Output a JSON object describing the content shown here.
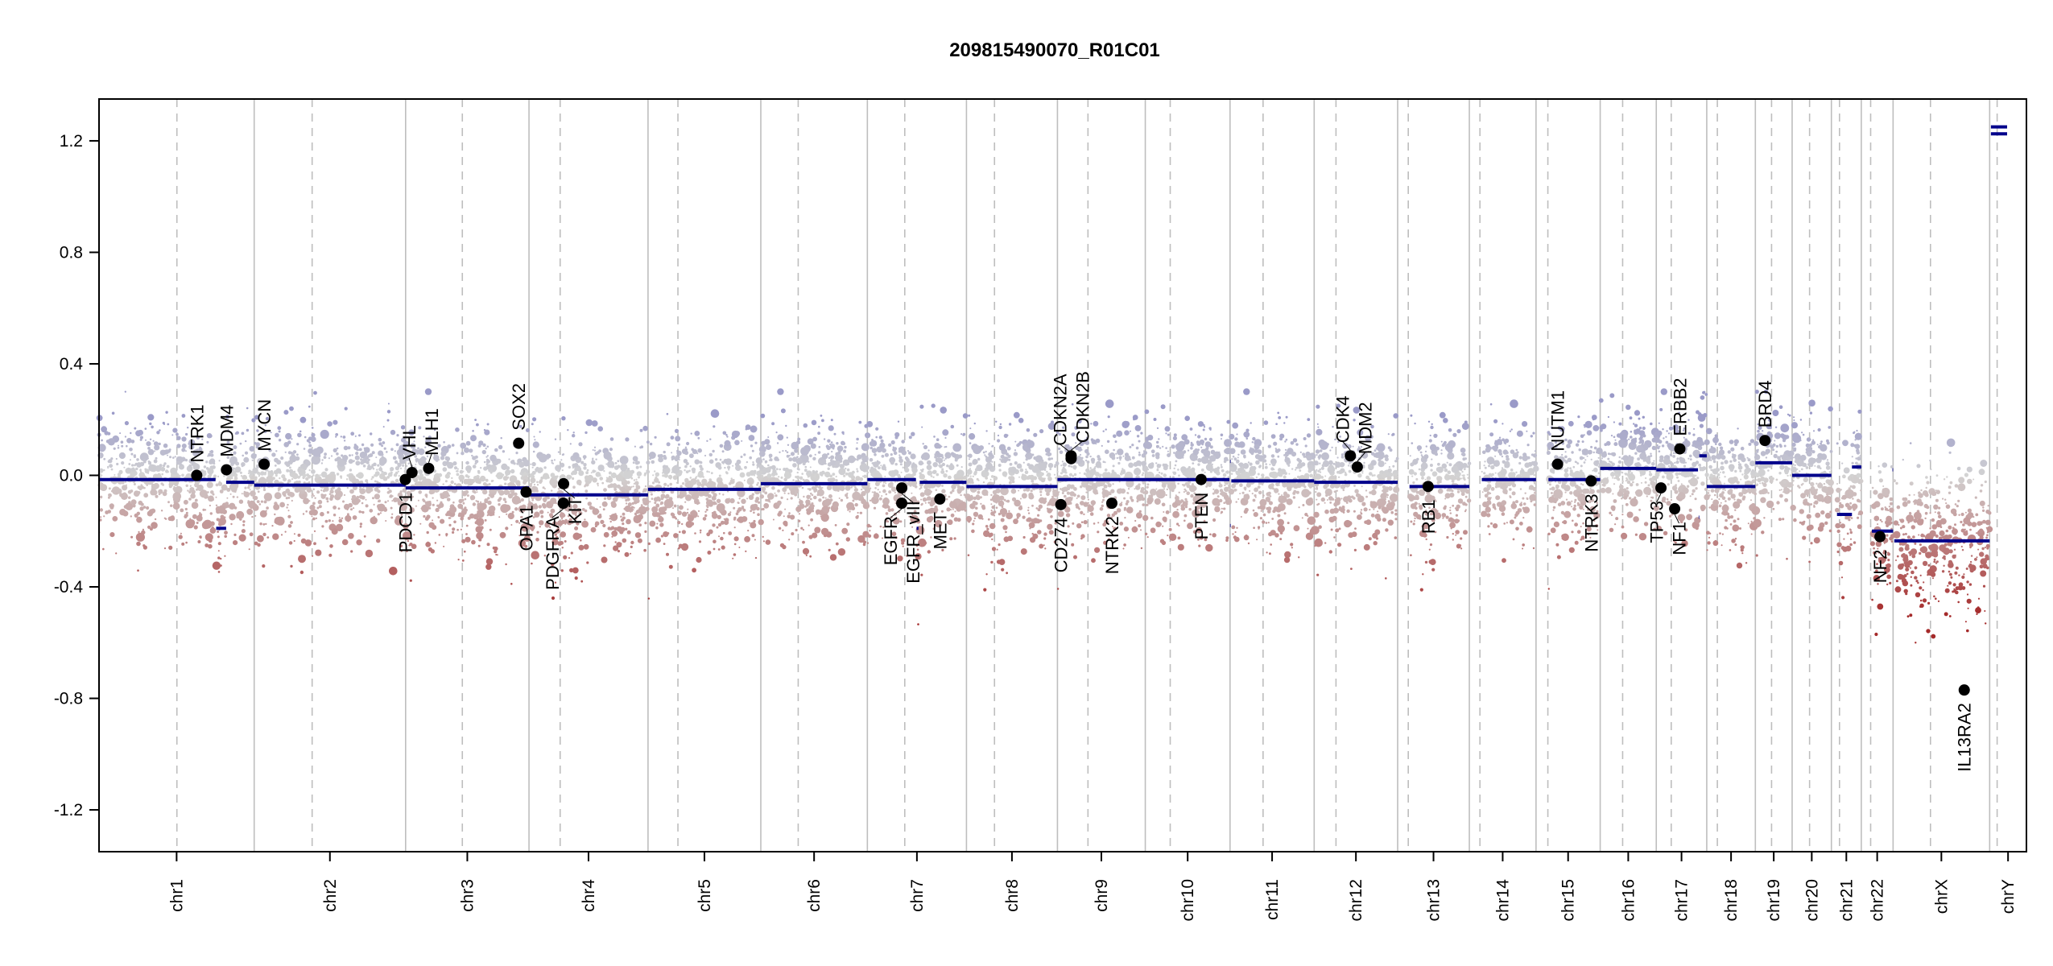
{
  "chart_data": {
    "type": "scatter",
    "title": "209815490070_R01C01",
    "xlabel": "",
    "ylabel": "",
    "ylim": [
      -1.35,
      1.35
    ],
    "yticks": [
      -1.2,
      -0.8,
      -0.4,
      0.0,
      0.4,
      0.8,
      1.2
    ],
    "ytick_labels": [
      "-1.2",
      "-0.8",
      "-0.4",
      "0.0",
      "0.4",
      "0.8",
      "1.2"
    ],
    "grid": "vertical lines at chromosome boundaries (solid) and centromeres (dashed)",
    "chromosomes": [
      {
        "name": "chr1",
        "length_mb": 249,
        "centromere_mb": 125
      },
      {
        "name": "chr2",
        "length_mb": 243,
        "centromere_mb": 93
      },
      {
        "name": "chr3",
        "length_mb": 198,
        "centromere_mb": 91
      },
      {
        "name": "chr4",
        "length_mb": 191,
        "centromere_mb": 50
      },
      {
        "name": "chr5",
        "length_mb": 181,
        "centromere_mb": 48
      },
      {
        "name": "chr6",
        "length_mb": 171,
        "centromere_mb": 60
      },
      {
        "name": "chr7",
        "length_mb": 159,
        "centromere_mb": 60
      },
      {
        "name": "chr8",
        "length_mb": 146,
        "centromere_mb": 45
      },
      {
        "name": "chr9",
        "length_mb": 141,
        "centromere_mb": 49
      },
      {
        "name": "chr10",
        "length_mb": 136,
        "centromere_mb": 40
      },
      {
        "name": "chr11",
        "length_mb": 135,
        "centromere_mb": 53
      },
      {
        "name": "chr12",
        "length_mb": 134,
        "centromere_mb": 35
      },
      {
        "name": "chr13",
        "length_mb": 115,
        "centromere_mb": 17
      },
      {
        "name": "chr14",
        "length_mb": 107,
        "centromere_mb": 17
      },
      {
        "name": "chr15",
        "length_mb": 103,
        "centromere_mb": 19
      },
      {
        "name": "chr16",
        "length_mb": 90,
        "centromere_mb": 36
      },
      {
        "name": "chr17",
        "length_mb": 81,
        "centromere_mb": 24
      },
      {
        "name": "chr18",
        "length_mb": 78,
        "centromere_mb": 17
      },
      {
        "name": "chr19",
        "length_mb": 59,
        "centromere_mb": 26
      },
      {
        "name": "chr20",
        "length_mb": 63,
        "centromere_mb": 28
      },
      {
        "name": "chr21",
        "length_mb": 48,
        "centromere_mb": 13
      },
      {
        "name": "chr22",
        "length_mb": 51,
        "centromere_mb": 15
      },
      {
        "name": "chrX",
        "length_mb": 155,
        "centromere_mb": 60
      },
      {
        "name": "chrY",
        "length_mb": 59,
        "centromere_mb": 12
      }
    ],
    "segments": [
      {
        "chr": "chr1",
        "start": 0,
        "end": 187,
        "value": -0.015
      },
      {
        "chr": "chr1",
        "start": 188,
        "end": 204,
        "value": -0.19
      },
      {
        "chr": "chr1",
        "start": 204,
        "end": 249,
        "value": -0.025
      },
      {
        "chr": "chr2",
        "start": 0,
        "end": 243,
        "value": -0.035
      },
      {
        "chr": "chr3",
        "start": 0,
        "end": 198,
        "value": -0.045
      },
      {
        "chr": "chr4",
        "start": 0,
        "end": 191,
        "value": -0.07
      },
      {
        "chr": "chr5",
        "start": 0,
        "end": 181,
        "value": -0.05
      },
      {
        "chr": "chr6",
        "start": 0,
        "end": 171,
        "value": -0.03
      },
      {
        "chr": "chr7",
        "start": 0,
        "end": 78,
        "value": -0.015
      },
      {
        "chr": "chr7",
        "start": 79,
        "end": 82,
        "value": -0.19
      },
      {
        "chr": "chr7",
        "start": 84,
        "end": 159,
        "value": -0.025
      },
      {
        "chr": "chr8",
        "start": 0,
        "end": 146,
        "value": -0.04
      },
      {
        "chr": "chr9",
        "start": 0,
        "end": 141,
        "value": -0.015
      },
      {
        "chr": "chr10",
        "start": 0,
        "end": 135,
        "value": -0.015
      },
      {
        "chr": "chr11",
        "start": 0,
        "end": 1,
        "value": 0.05
      },
      {
        "chr": "chr11",
        "start": 0,
        "end": 1,
        "value": -0.18
      },
      {
        "chr": "chr11",
        "start": 2,
        "end": 135,
        "value": -0.02
      },
      {
        "chr": "chr12",
        "start": 0,
        "end": 134,
        "value": -0.025
      },
      {
        "chr": "chr13",
        "start": 19,
        "end": 115,
        "value": -0.04
      },
      {
        "chr": "chr14",
        "start": 20,
        "end": 107,
        "value": -0.015
      },
      {
        "chr": "chr15",
        "start": 20,
        "end": 103,
        "value": -0.015
      },
      {
        "chr": "chr16",
        "start": 0,
        "end": 90,
        "value": 0.025
      },
      {
        "chr": "chr17",
        "start": 0,
        "end": 67,
        "value": 0.02
      },
      {
        "chr": "chr17",
        "start": 68,
        "end": 69,
        "value": -0.15
      },
      {
        "chr": "chr17",
        "start": 69,
        "end": 81,
        "value": 0.07
      },
      {
        "chr": "chr18",
        "start": 0,
        "end": 78,
        "value": -0.04
      },
      {
        "chr": "chr19",
        "start": 0,
        "end": 59,
        "value": 0.045
      },
      {
        "chr": "chr20",
        "start": 0,
        "end": 63,
        "value": 0.0
      },
      {
        "chr": "chr21",
        "start": 9,
        "end": 33,
        "value": -0.14
      },
      {
        "chr": "chr21",
        "start": 33,
        "end": 48,
        "value": 0.03
      },
      {
        "chr": "chr22",
        "start": 17,
        "end": 51,
        "value": -0.2
      },
      {
        "chr": "chr22",
        "start": 50,
        "end": 51,
        "value": 0.02
      },
      {
        "chr": "chrX",
        "start": 2,
        "end": 155,
        "value": -0.235
      },
      {
        "chr": "chrY",
        "start": 2,
        "end": 28,
        "value": 1.25
      },
      {
        "chr": "chrY",
        "start": 2,
        "end": 28,
        "value": 1.225
      }
    ],
    "genes": [
      {
        "name": "NTRK1",
        "chr": "chr1",
        "pos_mb": 156.8,
        "value": 0.0,
        "label_side": "above"
      },
      {
        "name": "MDM4",
        "chr": "chr1",
        "pos_mb": 204.5,
        "value": 0.02,
        "label_side": "above"
      },
      {
        "name": "MYCN",
        "chr": "chr2",
        "pos_mb": 16.0,
        "value": 0.04,
        "label_side": "above"
      },
      {
        "name": "PDCD1",
        "chr": "chr2",
        "pos_mb": 242.5,
        "value": -0.015,
        "label_side": "below"
      },
      {
        "name": "VHL",
        "chr": "chr3",
        "pos_mb": 10.2,
        "value": 0.01,
        "label_side": "above"
      },
      {
        "name": "MLH1",
        "chr": "chr3",
        "pos_mb": 37.0,
        "value": 0.025,
        "label_side": "above"
      },
      {
        "name": "SOX2",
        "chr": "chr3",
        "pos_mb": 181.4,
        "value": 0.115,
        "label_side": "above"
      },
      {
        "name": "OPA1",
        "chr": "chr3",
        "pos_mb": 193.3,
        "value": -0.06,
        "label_side": "below"
      },
      {
        "name": "PDGFRA",
        "chr": "chr4",
        "pos_mb": 55.1,
        "value": -0.1,
        "label_side": "below"
      },
      {
        "name": "KIT",
        "chr": "chr4",
        "pos_mb": 55.5,
        "value": -0.03,
        "label_side": "below"
      },
      {
        "name": "EGFR",
        "chr": "chr7",
        "pos_mb": 55.1,
        "value": -0.1,
        "label_side": "below"
      },
      {
        "name": "EGFR_vIII",
        "chr": "chr7",
        "pos_mb": 55.2,
        "value": -0.045,
        "label_side": "below"
      },
      {
        "name": "MET",
        "chr": "chr7",
        "pos_mb": 116.3,
        "value": -0.085,
        "label_side": "below"
      },
      {
        "name": "CD274",
        "chr": "chr9",
        "pos_mb": 5.5,
        "value": -0.105,
        "label_side": "below"
      },
      {
        "name": "CDKN2A",
        "chr": "chr9",
        "pos_mb": 21.97,
        "value": 0.06,
        "label_side": "above"
      },
      {
        "name": "CDKN2B",
        "chr": "chr9",
        "pos_mb": 22.0,
        "value": 0.07,
        "label_side": "above"
      },
      {
        "name": "NTRK2",
        "chr": "chr9",
        "pos_mb": 87.3,
        "value": -0.1,
        "label_side": "below"
      },
      {
        "name": "PTEN",
        "chr": "chr10",
        "pos_mb": 89.6,
        "value": -0.015,
        "label_side": "below"
      },
      {
        "name": "CDK4",
        "chr": "chr12",
        "pos_mb": 58.1,
        "value": 0.07,
        "label_side": "above"
      },
      {
        "name": "MDM2",
        "chr": "chr12",
        "pos_mb": 69.2,
        "value": 0.03,
        "label_side": "above"
      },
      {
        "name": "RB1",
        "chr": "chr13",
        "pos_mb": 48.9,
        "value": -0.04,
        "label_side": "below"
      },
      {
        "name": "NUTM1",
        "chr": "chr15",
        "pos_mb": 34.6,
        "value": 0.04,
        "label_side": "above"
      },
      {
        "name": "NTRK3",
        "chr": "chr15",
        "pos_mb": 88.5,
        "value": -0.02,
        "label_side": "below"
      },
      {
        "name": "TP53",
        "chr": "chr17",
        "pos_mb": 7.5,
        "value": -0.045,
        "label_side": "below"
      },
      {
        "name": "NF1",
        "chr": "chr17",
        "pos_mb": 29.5,
        "value": -0.12,
        "label_side": "below"
      },
      {
        "name": "ERBB2",
        "chr": "chr17",
        "pos_mb": 37.8,
        "value": 0.095,
        "label_side": "above"
      },
      {
        "name": "BRD4",
        "chr": "chr19",
        "pos_mb": 15.4,
        "value": 0.125,
        "label_side": "above"
      },
      {
        "name": "NF2",
        "chr": "chr22",
        "pos_mb": 30.0,
        "value": -0.22,
        "label_side": "below"
      },
      {
        "name": "IL13RA2",
        "chr": "chrX",
        "pos_mb": 114.2,
        "value": -0.77,
        "label_side": "below"
      }
    ],
    "colors": {
      "segment": "#00008b",
      "gain": "#9a9ac8",
      "neutral": "#d3d3d3",
      "loss": "#a52a2a",
      "gene_point": "#000000",
      "boundary_line": "#bebebe"
    }
  }
}
